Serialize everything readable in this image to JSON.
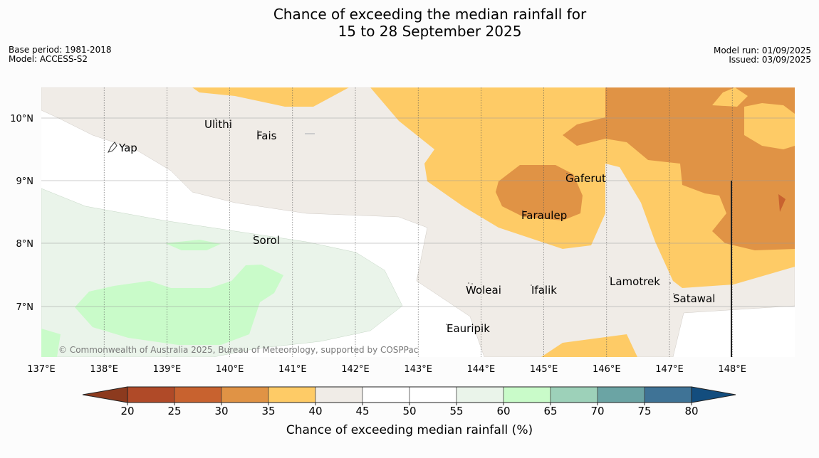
{
  "header": {
    "title_line1": "Chance of exceeding the median rainfall for",
    "title_line2": "15 to 28 September 2025",
    "base_period": "Base period: 1981-2018",
    "model": "Model: ACCESS-S2",
    "model_run": "Model run: 01/09/2025",
    "issued": "Issued: 03/09/2025"
  },
  "map": {
    "lon_labels": [
      "137°E",
      "138°E",
      "139°E",
      "140°E",
      "141°E",
      "142°E",
      "143°E",
      "144°E",
      "145°E",
      "146°E",
      "147°E",
      "148°E"
    ],
    "lat_labels": [
      "10°N",
      "9°N",
      "8°N",
      "7°N"
    ],
    "places": {
      "yap": "Yap",
      "ulithi": "Ulithi",
      "fais": "Fais",
      "sorol": "Sorol",
      "gaferut": "Gaferut",
      "faraulep": "Faraulep",
      "woleai": "Woleai",
      "ifalik": "Ifalik",
      "eauripik": "Eauripik",
      "lamotrek": "Lamotrek",
      "satawal": "Satawal"
    },
    "copyright": "© Commonwealth of Australia 2025, Bureau of Meteorology, supported by COSPPac"
  },
  "colorbar": {
    "ticks": [
      "20",
      "25",
      "30",
      "35",
      "40",
      "45",
      "50",
      "55",
      "60",
      "65",
      "70",
      "75",
      "80"
    ],
    "colors": [
      "#b04a28",
      "#c8622f",
      "#e09345",
      "#fecb66",
      "#f0ece7",
      "#ffffff",
      "#ffffff",
      "#eaf4ea",
      "#c9fbc9",
      "#9dd1b9",
      "#6ba4a4",
      "#3f7396"
    ],
    "low_color": "#8c3a1e",
    "high_color": "#134d7e",
    "label": "Chance of exceeding median rainfall (%)"
  }
}
